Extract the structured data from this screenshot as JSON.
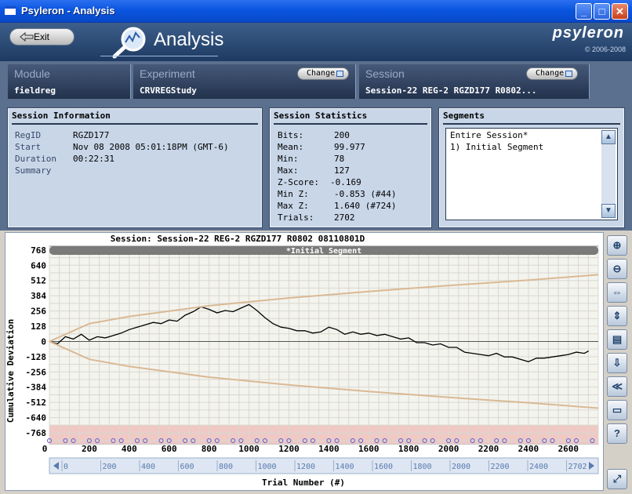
{
  "window": {
    "title": "Psyleron - Analysis"
  },
  "header": {
    "exit_label": "Exit",
    "title": "Analysis",
    "brand": "psyleron",
    "copyright": "© 2006-2008"
  },
  "module": {
    "label": "Module",
    "value": "fieldreg"
  },
  "experiment": {
    "label": "Experiment",
    "value": "CRVREGStudy",
    "change_label": "Change"
  },
  "session": {
    "label": "Session",
    "value": "Session-22 REG-2 RGZD177 R0802...",
    "change_label": "Change"
  },
  "session_info": {
    "title": "Session Information",
    "rows": [
      {
        "key": "RegID",
        "value": "RGZD177"
      },
      {
        "key": "Start",
        "value": "Nov 08 2008 05:01:18PM (GMT-6)"
      },
      {
        "key": "Duration",
        "value": "00:22:31"
      },
      {
        "key": "Summary",
        "value": ""
      }
    ]
  },
  "session_stats": {
    "title": "Session Statistics",
    "rows": [
      {
        "key": "Bits:",
        "value": "200"
      },
      {
        "key": "Mean:",
        "value": "99.977"
      },
      {
        "key": "Min:",
        "value": "78"
      },
      {
        "key": "Max:",
        "value": "127"
      },
      {
        "key": "Z-Score:",
        "value": "-0.169"
      },
      {
        "key": "Min Z:",
        "value": "-0.853 (#44)"
      },
      {
        "key": "Max Z:",
        "value": "1.640 (#724)"
      },
      {
        "key": "Trials:",
        "value": "2702"
      }
    ]
  },
  "segments": {
    "title": "Segments",
    "items": [
      "Entire Session*",
      "1) Initial Segment"
    ]
  },
  "chart_data": {
    "type": "line",
    "title": "Session: Session-22 REG-2 RGZD177 R0802 08110801D",
    "segment_banner": "*Initial Segment",
    "xlabel": "Trial Number (#)",
    "ylabel": "Cumulative Deviation",
    "xlim": [
      0,
      2750
    ],
    "ylim": [
      -860,
      800
    ],
    "y_ticks": [
      768,
      640,
      512,
      384,
      256,
      128,
      0,
      -128,
      -256,
      -384,
      -512,
      -640,
      -768
    ],
    "x_ticks": [
      0,
      200,
      400,
      600,
      800,
      1000,
      1200,
      1400,
      1600,
      1800,
      2000,
      2200,
      2400,
      2600
    ],
    "scroll_ticks": [
      "0",
      "200",
      "400",
      "600",
      "800",
      "1000",
      "1200",
      "1400",
      "1600",
      "1800",
      "2000",
      "2200",
      "2400",
      "2702"
    ],
    "grid": true,
    "series": [
      {
        "x": [
          0,
          40,
          80,
          120,
          160,
          200,
          240,
          280,
          320,
          360,
          400,
          440,
          480,
          520,
          560,
          600,
          640,
          680,
          720,
          760,
          800,
          840,
          880,
          920,
          960,
          1000,
          1040,
          1080,
          1120,
          1160,
          1200,
          1240,
          1280,
          1320,
          1360,
          1400,
          1440,
          1480,
          1520,
          1560,
          1600,
          1640,
          1680,
          1720,
          1760,
          1800,
          1840,
          1880,
          1920,
          1960,
          2000,
          2040,
          2080,
          2120,
          2160,
          2200,
          2240,
          2280,
          2320,
          2360,
          2400,
          2440,
          2480,
          2520,
          2560,
          2600,
          2640,
          2680,
          2702
        ],
        "y": [
          0,
          -20,
          40,
          20,
          60,
          10,
          40,
          30,
          50,
          70,
          100,
          120,
          140,
          160,
          150,
          180,
          170,
          220,
          250,
          290,
          270,
          240,
          260,
          250,
          280,
          310,
          260,
          200,
          150,
          120,
          110,
          90,
          90,
          70,
          80,
          120,
          100,
          60,
          80,
          60,
          70,
          50,
          60,
          40,
          20,
          30,
          -10,
          -10,
          -30,
          -20,
          -50,
          -50,
          -90,
          -100,
          -110,
          -120,
          -100,
          -130,
          -130,
          -150,
          -170,
          -140,
          -140,
          -130,
          -120,
          -110,
          -90,
          -100,
          -80
        ]
      },
      {
        "name": "upper envelope",
        "x": [
          0,
          200,
          400,
          800,
          1200,
          1600,
          2000,
          2400,
          2750
        ],
        "y": [
          0,
          150,
          210,
          300,
          365,
          420,
          470,
          515,
          560
        ]
      },
      {
        "name": "lower envelope",
        "x": [
          0,
          200,
          400,
          800,
          1200,
          1600,
          2000,
          2400,
          2750
        ],
        "y": [
          0,
          -150,
          -210,
          -300,
          -365,
          -420,
          -470,
          -515,
          -560
        ]
      }
    ],
    "colors": {
      "trace": "#000000",
      "envelope": "#d9b994",
      "band": "#f0c8c4",
      "plot_bg": "#f4f4ee"
    }
  },
  "tools": [
    "zoom-in-icon",
    "zoom-out-icon",
    "fit-width-icon",
    "fit-height-icon",
    "export-image-icon",
    "save-icon",
    "rewind-icon",
    "comment-icon",
    "help-icon",
    "resize-icon"
  ]
}
